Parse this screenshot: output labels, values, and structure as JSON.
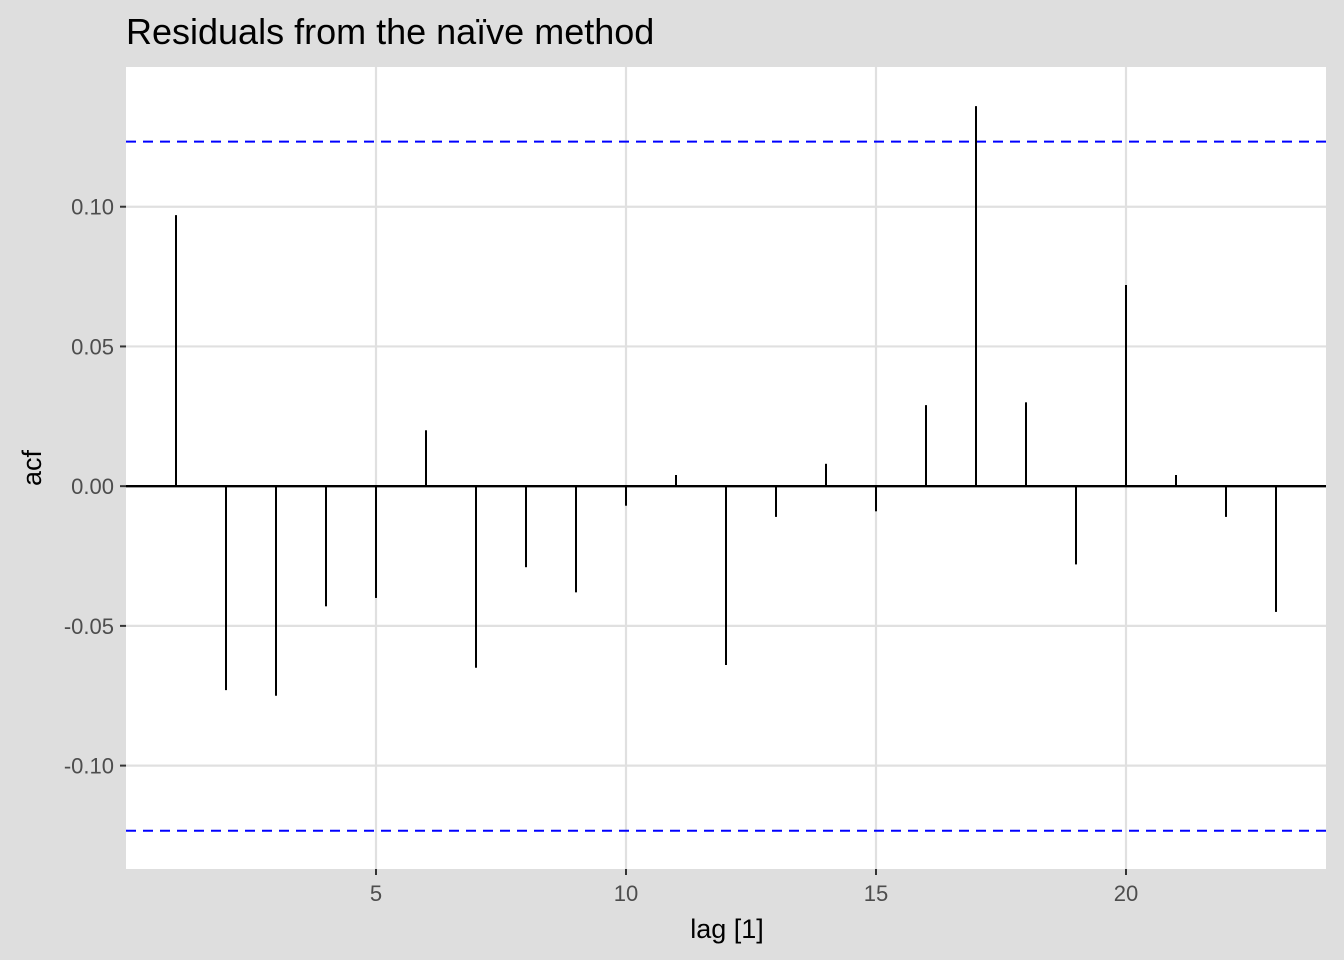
{
  "chart_data": {
    "type": "bar",
    "subtype": "acf",
    "title": "Residuals from the naïve method",
    "xlabel": "lag [1]",
    "ylabel": "acf",
    "x": [
      1,
      2,
      3,
      4,
      5,
      6,
      7,
      8,
      9,
      10,
      11,
      12,
      13,
      14,
      15,
      16,
      17,
      18,
      19,
      20,
      21,
      22,
      23
    ],
    "values": [
      0.097,
      -0.073,
      -0.075,
      -0.043,
      -0.04,
      0.02,
      -0.065,
      -0.029,
      -0.038,
      -0.007,
      0.004,
      -0.064,
      -0.011,
      0.008,
      -0.009,
      0.029,
      0.136,
      0.03,
      -0.028,
      0.072,
      0.004,
      -0.011,
      -0.045
    ],
    "confidence_bounds": [
      0.1233,
      -0.1233
    ],
    "xlim": [
      0,
      24
    ],
    "ylim": [
      -0.137,
      0.15
    ],
    "x_ticks": [
      5,
      10,
      15,
      20
    ],
    "x_tick_labels": [
      "5",
      "10",
      "15",
      "20"
    ],
    "y_ticks": [
      0.1,
      0.05,
      0.0,
      -0.05,
      -0.1
    ],
    "y_tick_labels": [
      "0.10",
      "0.05",
      "0.00",
      "-0.05",
      "-0.10"
    ],
    "grid": true,
    "colors": {
      "background": "#dedede",
      "panel": "#ffffff",
      "grid": "#e0e0e0",
      "bars": "#000000",
      "bounds": "#0000ff"
    }
  }
}
